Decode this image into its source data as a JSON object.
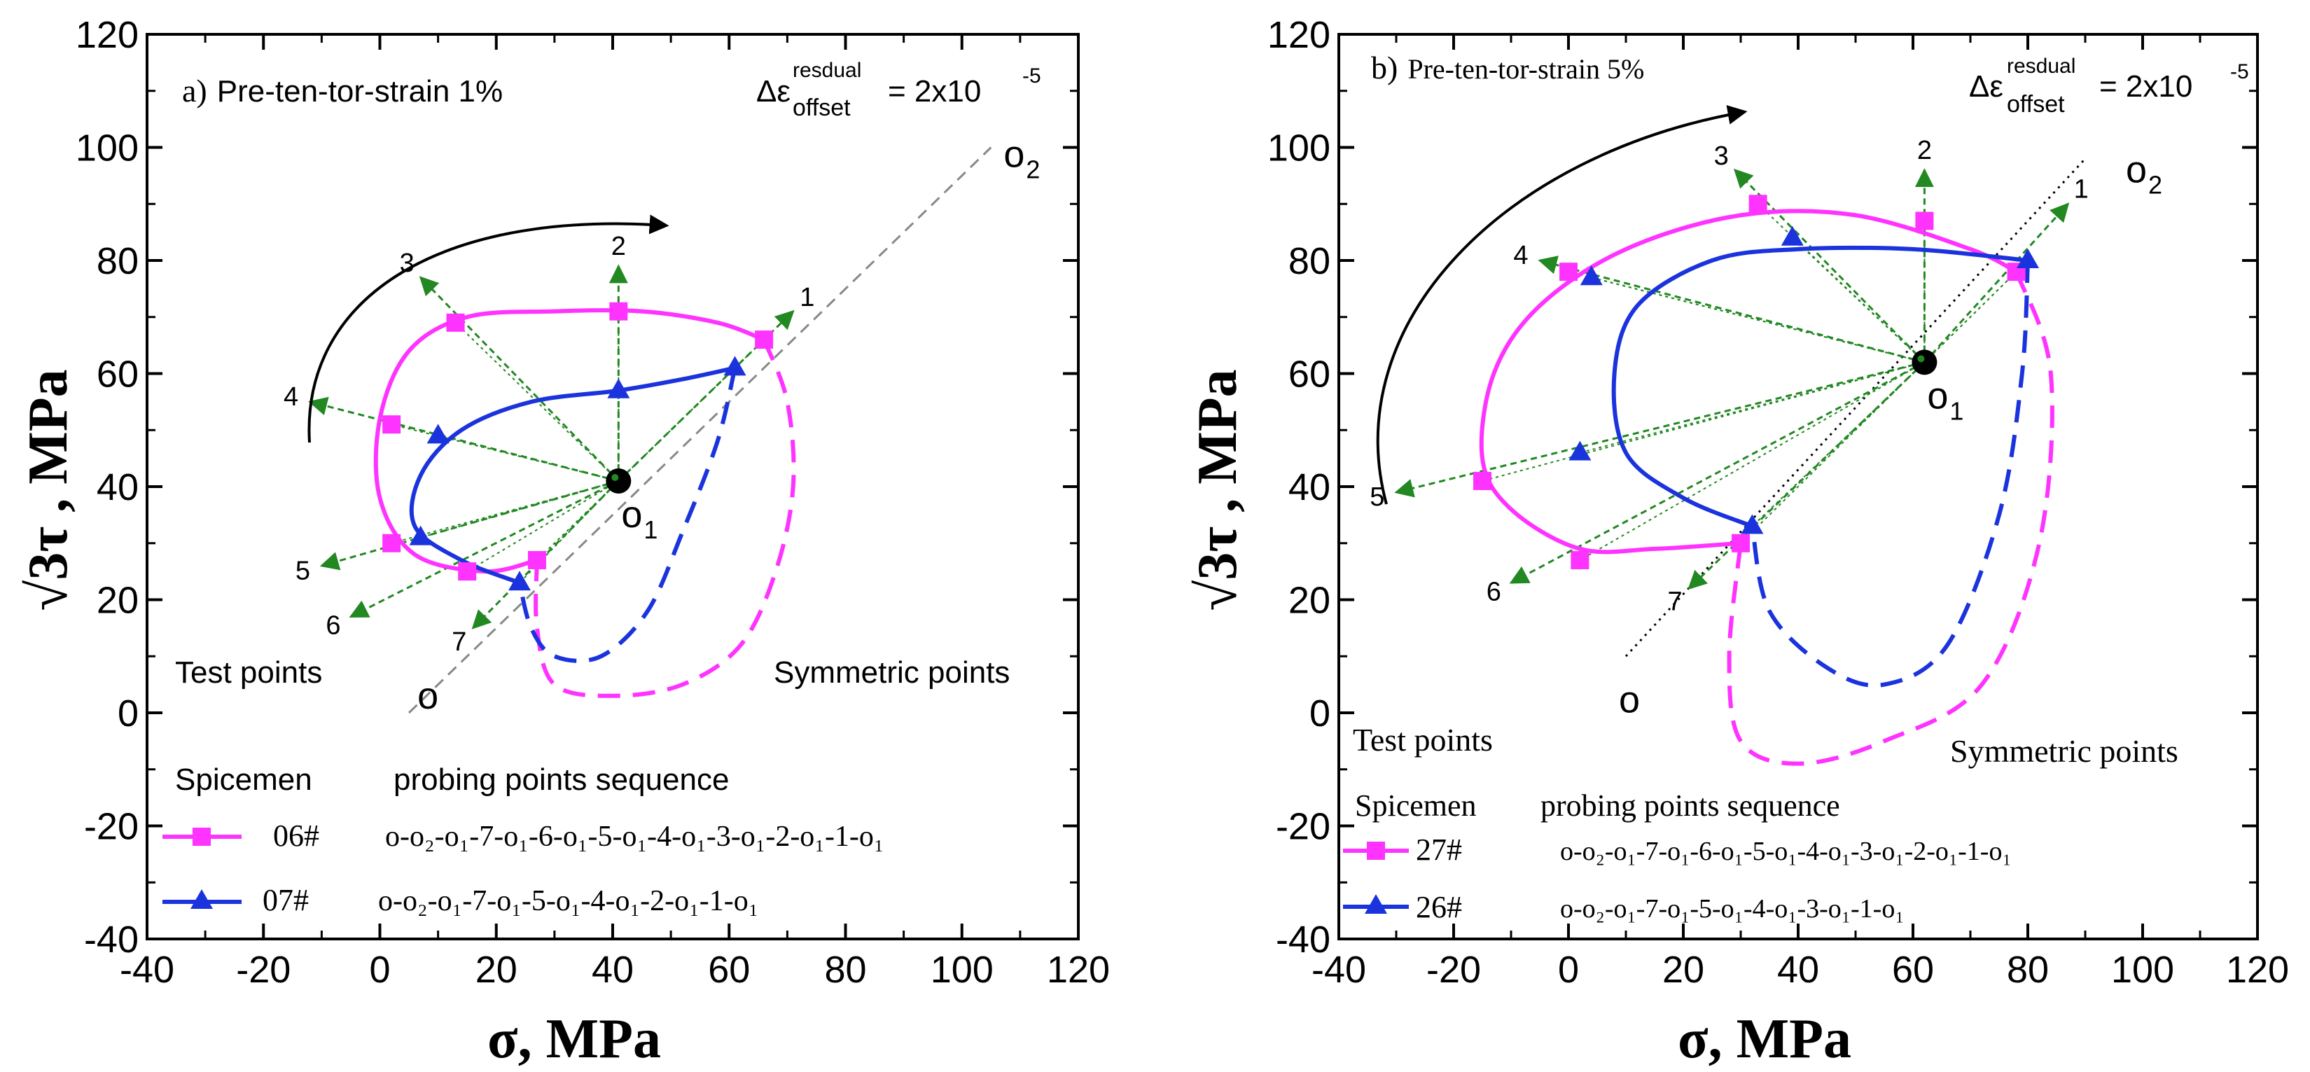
{
  "colors": {
    "series_06": "#ff33ff",
    "series_07": "#1a33dd",
    "series_27": "#ff33ff",
    "series_26": "#1a33dd",
    "probe": "#228822",
    "arrow": "#000000",
    "axis": "#000000",
    "dash_line": "#888888"
  },
  "chart_data": [
    {
      "panel": "a",
      "type": "scatter",
      "title": "a) Pre-ten-tor-strain 1%",
      "title_prefix": "a)",
      "title_text": "Pre-ten-tor-strain 1%",
      "equation": {
        "lhs": "Δε",
        "sup": "resdual",
        "sub": "offset",
        "rhs": "= 2x10",
        "exp": "-5"
      },
      "xlabel": "σ,  MPa",
      "ylabel": "√3τ , MPa",
      "xlim": [
        -40,
        120
      ],
      "ylim": [
        -40,
        120
      ],
      "xticks": [
        "-40",
        "-20",
        "0",
        "20",
        "40",
        "60",
        "80",
        "100",
        "120"
      ],
      "yticks": [
        "-40",
        "-20",
        "0",
        "20",
        "40",
        "60",
        "80",
        "100",
        "120"
      ],
      "center": {
        "label": "o",
        "sub": "1",
        "x": 41,
        "y": 41
      },
      "origin": {
        "label": "o",
        "x": 5,
        "y": 0
      },
      "far_point": {
        "label": "o",
        "sub": "2",
        "x": 105,
        "y": 100
      },
      "probe_directions": [
        {
          "label": "1",
          "x": 71,
          "y": 71
        },
        {
          "label": "2",
          "x": 41,
          "y": 79
        },
        {
          "label": "3",
          "x": 7,
          "y": 77
        },
        {
          "label": "4",
          "x": -12,
          "y": 55
        },
        {
          "label": "5",
          "x": -10,
          "y": 26
        },
        {
          "label": "6",
          "x": -5,
          "y": 17
        },
        {
          "label": "7",
          "x": 16,
          "y": 15
        }
      ],
      "annotations": {
        "test_points": "Test points",
        "symmetric_points": "Symmetric points"
      },
      "legend": {
        "header_specimen": "Spicemen",
        "header_sequence": "probing points sequence"
      },
      "series": [
        {
          "name": "06#",
          "marker": "square",
          "sequence": "o-o₂-o₁-7-o₁-6-o₁-5-o₁-4-o₁-3-o₁-2-o₁-1-o₁",
          "test_points": [
            [
              66,
              66
            ],
            [
              41,
              71
            ],
            [
              13,
              69
            ],
            [
              2,
              51
            ],
            [
              2,
              30
            ],
            [
              15,
              25
            ],
            [
              27,
              27
            ]
          ],
          "curve": [
            [
              27,
              27
            ],
            [
              18,
              25
            ],
            [
              6,
              28
            ],
            [
              0,
              38
            ],
            [
              0,
              52
            ],
            [
              5,
              64
            ],
            [
              15,
              70
            ],
            [
              30,
              71
            ],
            [
              45,
              71
            ],
            [
              58,
              69
            ],
            [
              66,
              66
            ]
          ],
          "symmetric_curve": [
            [
              66,
              66
            ],
            [
              70,
              55
            ],
            [
              71,
              40
            ],
            [
              68,
              25
            ],
            [
              62,
              12
            ],
            [
              52,
              5
            ],
            [
              40,
              3
            ],
            [
              30,
              5
            ],
            [
              27,
              15
            ],
            [
              27,
              27
            ]
          ]
        },
        {
          "name": "07#",
          "marker": "triangle",
          "sequence": "o-o₂-o₁-7-o₁-5-o₁-4-o₁-2-o₁-1-o₁",
          "test_points": [
            [
              61,
              61
            ],
            [
              41,
              57
            ],
            [
              10,
              49
            ],
            [
              7,
              31
            ],
            [
              24,
              23
            ]
          ],
          "curve": [
            [
              24,
              23
            ],
            [
              14,
              27
            ],
            [
              6,
              33
            ],
            [
              7,
              42
            ],
            [
              14,
              50
            ],
            [
              26,
              55
            ],
            [
              41,
              57
            ],
            [
              52,
              59
            ],
            [
              61,
              61
            ]
          ],
          "symmetric_curve": [
            [
              61,
              61
            ],
            [
              58,
              48
            ],
            [
              52,
              32
            ],
            [
              46,
              18
            ],
            [
              38,
              10
            ],
            [
              30,
              10
            ],
            [
              26,
              15
            ],
            [
              24,
              23
            ]
          ]
        }
      ]
    },
    {
      "panel": "b",
      "type": "scatter",
      "title": "b) Pre-ten-tor-strain 5%",
      "title_prefix": "b)",
      "title_text": "Pre-ten-tor-strain 5%",
      "equation": {
        "lhs": "Δε",
        "sup": "resdual",
        "sub": "offset",
        "rhs": "= 2x10",
        "exp": "-5"
      },
      "xlabel": "σ,  MPa",
      "ylabel": "√3τ , MPa",
      "xlim": [
        -40,
        120
      ],
      "ylim": [
        -40,
        120
      ],
      "xticks": [
        "-40",
        "-20",
        "0",
        "20",
        "40",
        "60",
        "80",
        "100",
        "120"
      ],
      "yticks": [
        "-40",
        "-20",
        "0",
        "20",
        "40",
        "60",
        "80",
        "100",
        "120"
      ],
      "center": {
        "label": "o",
        "sub": "1",
        "x": 62,
        "y": 62
      },
      "origin": {
        "label": "o",
        "x": 10,
        "y": 10
      },
      "far_point": {
        "label": "o",
        "sub": "2",
        "x": 90,
        "y": 98
      },
      "probe_directions": [
        {
          "label": "1",
          "x": 87,
          "y": 90
        },
        {
          "label": "2",
          "x": 62,
          "y": 96
        },
        {
          "label": "3",
          "x": 29,
          "y": 96
        },
        {
          "label": "4",
          "x": -5,
          "y": 80
        },
        {
          "label": "5",
          "x": -30,
          "y": 39
        },
        {
          "label": "6",
          "x": -10,
          "y": 23
        },
        {
          "label": "7",
          "x": 21,
          "y": 22
        }
      ],
      "annotations": {
        "test_points": "Test points",
        "symmetric_points": "Symmetric points"
      },
      "legend": {
        "header_specimen": "Spicemen",
        "header_sequence": "probing points sequence"
      },
      "series": [
        {
          "name": "27#",
          "marker": "square",
          "sequence": "o-o₂-o₁-7-o₁-6-o₁-5-o₁-4-o₁-3-o₁-2-o₁-1-o₁",
          "test_points": [
            [
              78,
              78
            ],
            [
              62,
              87
            ],
            [
              33,
              90
            ],
            [
              0,
              78
            ],
            [
              -15,
              41
            ],
            [
              2,
              27
            ],
            [
              30,
              30
            ]
          ],
          "curve": [
            [
              30,
              30
            ],
            [
              15,
              29
            ],
            [
              2,
              29
            ],
            [
              -10,
              36
            ],
            [
              -15,
              45
            ],
            [
              -13,
              60
            ],
            [
              -5,
              72
            ],
            [
              10,
              82
            ],
            [
              30,
              88
            ],
            [
              50,
              88
            ],
            [
              70,
              82
            ],
            [
              78,
              78
            ]
          ],
          "symmetric_curve": [
            [
              78,
              78
            ],
            [
              84,
              60
            ],
            [
              82,
              30
            ],
            [
              72,
              5
            ],
            [
              55,
              -5
            ],
            [
              40,
              -9
            ],
            [
              30,
              -5
            ],
            [
              28,
              10
            ],
            [
              30,
              30
            ]
          ]
        },
        {
          "name": "26#",
          "marker": "triangle",
          "sequence": "o-o₂-o₁-7-o₁-5-o₁-4-o₁-3-o₁-1-o₁",
          "test_points": [
            [
              80,
              80
            ],
            [
              39,
              84
            ],
            [
              4,
              77
            ],
            [
              2,
              46
            ],
            [
              32,
              33
            ]
          ],
          "curve": [
            [
              32,
              33
            ],
            [
              20,
              38
            ],
            [
              10,
              46
            ],
            [
              8,
              60
            ],
            [
              12,
              72
            ],
            [
              25,
              80
            ],
            [
              40,
              82
            ],
            [
              60,
              82
            ],
            [
              80,
              80
            ]
          ],
          "symmetric_curve": [
            [
              80,
              80
            ],
            [
              79,
              60
            ],
            [
              75,
              35
            ],
            [
              66,
              12
            ],
            [
              55,
              5
            ],
            [
              45,
              8
            ],
            [
              35,
              18
            ],
            [
              32,
              33
            ]
          ]
        }
      ]
    }
  ]
}
